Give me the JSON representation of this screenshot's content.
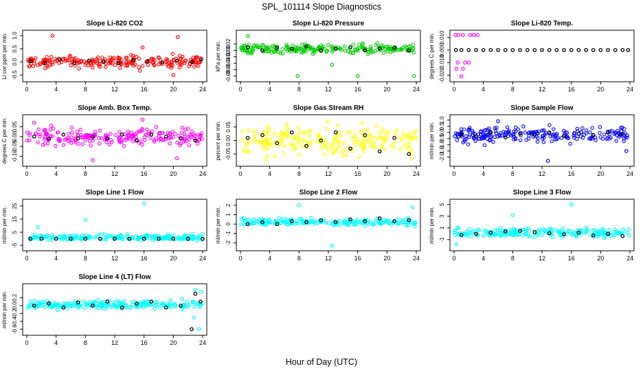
{
  "figure": {
    "title": "SPL_101114  Slope Diagnostics",
    "xlabel": "Hour of Day (UTC)"
  },
  "chart_data": [
    {
      "type": "scatter",
      "title": "Slope Li-820 CO2",
      "ylabel": "Li cor ppm per min.",
      "color": "#ff0000",
      "xlim": [
        0,
        24
      ],
      "ylim": [
        -0.6,
        1.05
      ],
      "xticks": [
        0,
        4,
        8,
        12,
        16,
        20,
        24
      ],
      "yticks": [
        -0.5,
        0.0,
        0.5,
        1.0
      ],
      "ytick_labels": [
        "-0.5",
        "0.0",
        "0.5",
        "1.0"
      ],
      "band": {
        "center": 0.0,
        "spread": 0.22
      },
      "outliers": [
        {
          "x": 3.5,
          "y": 1.0
        },
        {
          "x": 15.8,
          "y": 0.55
        },
        {
          "x": 20.6,
          "y": 0.95
        },
        {
          "x": 20.0,
          "y": -0.5
        }
      ],
      "hourly_means": [
        {
          "x": 0.5,
          "y": 0.02
        },
        {
          "x": 2.5,
          "y": -0.05
        },
        {
          "x": 4.5,
          "y": 0.1
        },
        {
          "x": 6.5,
          "y": -0.05
        },
        {
          "x": 8.5,
          "y": 0.05
        },
        {
          "x": 10.5,
          "y": 0.0
        },
        {
          "x": 12.5,
          "y": -0.05
        },
        {
          "x": 14.5,
          "y": 0.08
        },
        {
          "x": 16.5,
          "y": 0.03
        },
        {
          "x": 18.5,
          "y": -0.02
        },
        {
          "x": 20.5,
          "y": 0.05
        },
        {
          "x": 22.5,
          "y": 0.0
        },
        {
          "x": 23.8,
          "y": 0.1
        }
      ]
    },
    {
      "type": "scatter",
      "title": "Slope Li-820 Pressure",
      "ylabel": "kPa per min.",
      "color": "#00cc00",
      "xlim": [
        0,
        24
      ],
      "ylim": [
        -0.085,
        0.05
      ],
      "xticks": [
        0,
        4,
        8,
        12,
        16,
        20,
        24
      ],
      "yticks": [
        -0.08,
        -0.06,
        -0.04,
        -0.02,
        0.0,
        0.02
      ],
      "ytick_labels": [
        "-0.08",
        "-0.06",
        "-0.04",
        "-0.02",
        "0.00",
        "0.02"
      ],
      "band": {
        "center": 0.005,
        "spread": 0.014
      },
      "outliers": [
        {
          "x": 1.0,
          "y": 0.045
        },
        {
          "x": 7.8,
          "y": -0.08
        },
        {
          "x": 12.5,
          "y": -0.045
        },
        {
          "x": 16.0,
          "y": -0.08
        },
        {
          "x": 23.7,
          "y": -0.08
        }
      ],
      "hourly_means": [
        {
          "x": 1.0,
          "y": 0.01
        },
        {
          "x": 3.0,
          "y": 0.0
        },
        {
          "x": 5.0,
          "y": 0.008
        },
        {
          "x": 7.0,
          "y": 0.005
        },
        {
          "x": 9.0,
          "y": 0.012
        },
        {
          "x": 11.0,
          "y": 0.0
        },
        {
          "x": 13.0,
          "y": 0.005
        },
        {
          "x": 15.0,
          "y": 0.01
        },
        {
          "x": 17.0,
          "y": 0.0
        },
        {
          "x": 19.0,
          "y": 0.005
        },
        {
          "x": 21.0,
          "y": 0.008
        },
        {
          "x": 23.0,
          "y": 0.0
        }
      ]
    },
    {
      "type": "scatter",
      "title": "Slope Li-820 Temp.",
      "ylabel": "degrees C per min.",
      "color": "#ff00ff",
      "xlim": [
        0,
        24
      ],
      "ylim": [
        -0.022,
        0.0125
      ],
      "xticks": [
        0,
        4,
        8,
        12,
        16,
        20,
        24
      ],
      "yticks": [
        -0.02,
        -0.01,
        0.0,
        0.01
      ],
      "ytick_labels": [
        "-0.020",
        "-0.010",
        "0.000",
        "0.010"
      ],
      "band": {
        "center": 0.0,
        "spread": 0.0
      },
      "outliers": [
        {
          "x": 0.2,
          "y": 0.012
        },
        {
          "x": 0.6,
          "y": 0.012
        },
        {
          "x": 1.2,
          "y": 0.012
        },
        {
          "x": 2.2,
          "y": 0.012
        },
        {
          "x": 2.7,
          "y": 0.012
        },
        {
          "x": 3.2,
          "y": 0.012
        },
        {
          "x": 0.5,
          "y": -0.01
        },
        {
          "x": 1.5,
          "y": -0.01
        },
        {
          "x": 2.0,
          "y": -0.01
        },
        {
          "x": 0.3,
          "y": -0.015
        },
        {
          "x": 1.2,
          "y": -0.015
        },
        {
          "x": 1.0,
          "y": -0.021
        }
      ],
      "hourly_means": [
        {
          "x": 0.25,
          "y": 0.0
        },
        {
          "x": 1.0,
          "y": 0.0
        },
        {
          "x": 2.0,
          "y": 0.0
        },
        {
          "x": 3.0,
          "y": 0.0
        },
        {
          "x": 4.0,
          "y": 0.0
        },
        {
          "x": 5.0,
          "y": 0.0
        },
        {
          "x": 6.0,
          "y": 0.0
        },
        {
          "x": 7.0,
          "y": 0.0
        },
        {
          "x": 8.0,
          "y": 0.0
        },
        {
          "x": 9.0,
          "y": 0.0
        },
        {
          "x": 10.0,
          "y": 0.0
        },
        {
          "x": 11.0,
          "y": 0.0
        },
        {
          "x": 12.0,
          "y": 0.0
        },
        {
          "x": 13.0,
          "y": 0.0
        },
        {
          "x": 14.0,
          "y": 0.0
        },
        {
          "x": 15.0,
          "y": 0.0
        },
        {
          "x": 16.0,
          "y": 0.0
        },
        {
          "x": 17.0,
          "y": 0.0
        },
        {
          "x": 18.0,
          "y": 0.0
        },
        {
          "x": 19.0,
          "y": 0.0
        },
        {
          "x": 20.0,
          "y": 0.0
        },
        {
          "x": 21.0,
          "y": 0.0
        },
        {
          "x": 22.0,
          "y": 0.0
        },
        {
          "x": 23.0,
          "y": 0.0
        },
        {
          "x": 23.75,
          "y": 0.0
        }
      ]
    },
    {
      "type": "scatter",
      "title": "Slope Amb. Box Temp.",
      "ylabel": "degrees C per min.",
      "color": "#ff00ff",
      "xlim": [
        0,
        24
      ],
      "ylim": [
        -0.13,
        0.09
      ],
      "xticks": [
        0,
        4,
        8,
        12,
        16,
        20,
        24
      ],
      "yticks": [
        -0.1,
        -0.05,
        0.0,
        0.05
      ],
      "ytick_labels": [
        "-0.10",
        "-0.05",
        "0.00",
        "0.05"
      ],
      "band": {
        "center": 0.0,
        "spread": 0.045
      },
      "outliers": [
        {
          "x": 9.0,
          "y": -0.12
        },
        {
          "x": 15.8,
          "y": 0.085
        },
        {
          "x": 20.5,
          "y": -0.11
        },
        {
          "x": 1.0,
          "y": 0.07
        }
      ],
      "hourly_means": [
        {
          "x": 1.0,
          "y": 0.0
        },
        {
          "x": 3.0,
          "y": -0.01
        },
        {
          "x": 5.0,
          "y": 0.01
        },
        {
          "x": 7.0,
          "y": -0.01
        },
        {
          "x": 9.0,
          "y": 0.0
        },
        {
          "x": 11.0,
          "y": -0.01
        },
        {
          "x": 13.0,
          "y": 0.01
        },
        {
          "x": 15.0,
          "y": -0.02
        },
        {
          "x": 17.0,
          "y": 0.01
        },
        {
          "x": 19.0,
          "y": 0.0
        },
        {
          "x": 21.0,
          "y": -0.01
        },
        {
          "x": 23.0,
          "y": -0.02
        }
      ]
    },
    {
      "type": "scatter",
      "title": "Slope Gas Stream RH",
      "ylabel": "percent per min.",
      "color": "#ffff00",
      "xlim": [
        0,
        24
      ],
      "ylim": [
        -0.08,
        0.08
      ],
      "xticks": [
        0,
        4,
        8,
        12,
        16,
        20,
        24
      ],
      "yticks": [
        -0.05,
        0.0,
        0.05
      ],
      "ytick_labels": [
        "-0.05",
        "0.00",
        "0.05"
      ],
      "band": {
        "center": 0.0,
        "spread": 0.05
      },
      "outliers": [
        {
          "x": 12.0,
          "y": 0.07
        },
        {
          "x": 3.5,
          "y": -0.07
        }
      ],
      "hourly_means": [
        {
          "x": 1.0,
          "y": 0.01
        },
        {
          "x": 3.0,
          "y": 0.02
        },
        {
          "x": 5.0,
          "y": -0.01
        },
        {
          "x": 7.0,
          "y": 0.03
        },
        {
          "x": 9.0,
          "y": -0.02
        },
        {
          "x": 11.0,
          "y": 0.0
        },
        {
          "x": 13.0,
          "y": 0.03
        },
        {
          "x": 15.0,
          "y": -0.03
        },
        {
          "x": 17.0,
          "y": 0.02
        },
        {
          "x": 19.0,
          "y": -0.04
        },
        {
          "x": 21.0,
          "y": 0.01
        },
        {
          "x": 23.0,
          "y": -0.05
        }
      ]
    },
    {
      "type": "scatter",
      "title": "Slope Sample Flow",
      "ylabel": "ml/min per min.",
      "color": "#0000ff",
      "xlim": [
        0,
        24
      ],
      "ylim": [
        -2.4,
        1.1
      ],
      "xticks": [
        0,
        4,
        8,
        12,
        16,
        20,
        24
      ],
      "yticks": [
        -2.0,
        -1.5,
        -1.0,
        -0.5,
        0.0,
        0.5,
        1.0
      ],
      "ytick_labels": [
        "-2.0",
        "-1.5",
        "-1.0",
        "-0.5",
        "0.0",
        "0.5",
        "1.0"
      ],
      "band": {
        "center": -0.2,
        "spread": 0.55
      },
      "outliers": [
        {
          "x": 12.8,
          "y": -2.3
        },
        {
          "x": 6.0,
          "y": 0.9
        },
        {
          "x": 23.5,
          "y": -1.5
        }
      ],
      "hourly_means": [
        {
          "x": 1.0,
          "y": -0.2
        },
        {
          "x": 3.0,
          "y": -0.3
        },
        {
          "x": 5.0,
          "y": 0.0
        },
        {
          "x": 7.0,
          "y": -0.4
        },
        {
          "x": 9.0,
          "y": -0.1
        },
        {
          "x": 11.0,
          "y": -0.2
        },
        {
          "x": 13.0,
          "y": 0.0
        },
        {
          "x": 15.0,
          "y": -0.3
        },
        {
          "x": 17.0,
          "y": -0.1
        },
        {
          "x": 19.0,
          "y": -0.2
        },
        {
          "x": 21.0,
          "y": 0.0
        },
        {
          "x": 23.0,
          "y": -0.1
        }
      ]
    },
    {
      "type": "scatter",
      "title": "Slope Line 1 Flow",
      "ylabel": "ml/min per min.",
      "color": "#00ffff",
      "xlim": [
        0,
        24
      ],
      "ylim": [
        -6,
        27
      ],
      "xticks": [
        0,
        4,
        8,
        12,
        16,
        20,
        24
      ],
      "yticks": [
        -5,
        5,
        15,
        25
      ],
      "ytick_labels": [
        "-5",
        "5",
        "15",
        "25"
      ],
      "band": {
        "center": 1.0,
        "spread": 2.0
      },
      "outliers": [
        {
          "x": 8.0,
          "y": 14.5
        },
        {
          "x": 16.0,
          "y": 27.0
        },
        {
          "x": 1.5,
          "y": 9.0
        }
      ],
      "hourly_means": [
        {
          "x": 0.5,
          "y": 0.0
        },
        {
          "x": 2.0,
          "y": 0.0
        },
        {
          "x": 4.0,
          "y": 0.0
        },
        {
          "x": 6.0,
          "y": 0.0
        },
        {
          "x": 8.0,
          "y": 0.0
        },
        {
          "x": 10.0,
          "y": 0.0
        },
        {
          "x": 12.0,
          "y": 0.0
        },
        {
          "x": 14.0,
          "y": 0.0
        },
        {
          "x": 16.0,
          "y": 0.0
        },
        {
          "x": 18.0,
          "y": 0.0
        },
        {
          "x": 20.0,
          "y": 0.0
        },
        {
          "x": 22.0,
          "y": 0.0
        },
        {
          "x": 24.0,
          "y": 0.0
        }
      ]
    },
    {
      "type": "scatter",
      "title": "Slope Line 2 Flow",
      "ylabel": "ml/min per min.",
      "color": "#00ffff",
      "xlim": [
        0,
        24
      ],
      "ylim": [
        -2.4,
        2.2
      ],
      "xticks": [
        0,
        4,
        8,
        12,
        16,
        20,
        24
      ],
      "yticks": [
        -2,
        -1,
        0,
        1,
        2
      ],
      "ytick_labels": [
        "-2",
        "-1",
        "0",
        "1",
        "2"
      ],
      "band": {
        "center": 0.2,
        "spread": 0.35
      },
      "outliers": [
        {
          "x": 8.0,
          "y": 2.0
        },
        {
          "x": 12.5,
          "y": -2.3
        },
        {
          "x": 23.5,
          "y": 1.8
        }
      ],
      "hourly_means": [
        {
          "x": 1.0,
          "y": 0.0
        },
        {
          "x": 3.0,
          "y": 0.2
        },
        {
          "x": 5.0,
          "y": 0.0
        },
        {
          "x": 7.0,
          "y": 0.3
        },
        {
          "x": 9.0,
          "y": 0.2
        },
        {
          "x": 11.0,
          "y": 0.4
        },
        {
          "x": 13.0,
          "y": 0.2
        },
        {
          "x": 15.0,
          "y": 0.5
        },
        {
          "x": 17.0,
          "y": 0.3
        },
        {
          "x": 19.0,
          "y": 0.6
        },
        {
          "x": 21.0,
          "y": 0.3
        },
        {
          "x": 23.0,
          "y": 0.4
        }
      ]
    },
    {
      "type": "scatter",
      "title": "Slope Line 3 Flow",
      "ylabel": "ml/min per min.",
      "color": "#00ffff",
      "xlim": [
        0,
        24
      ],
      "ylim": [
        -2.2,
        5.2
      ],
      "xticks": [
        0,
        4,
        8,
        12,
        16,
        20,
        24
      ],
      "yticks": [
        -1,
        1,
        3,
        5
      ],
      "ytick_labels": [
        "-1",
        "1",
        "3",
        "5"
      ],
      "band": {
        "center": 0.2,
        "spread": 0.7
      },
      "outliers": [
        {
          "x": 8.0,
          "y": 3.2
        },
        {
          "x": 16.0,
          "y": 5.0
        },
        {
          "x": 0.3,
          "y": -1.8
        }
      ],
      "hourly_means": [
        {
          "x": 1.0,
          "y": -0.2
        },
        {
          "x": 3.0,
          "y": 0.0
        },
        {
          "x": 5.0,
          "y": 0.2
        },
        {
          "x": 7.0,
          "y": 0.4
        },
        {
          "x": 9.0,
          "y": 0.5
        },
        {
          "x": 11.0,
          "y": 0.3
        },
        {
          "x": 13.0,
          "y": 0.1
        },
        {
          "x": 15.0,
          "y": -0.1
        },
        {
          "x": 17.0,
          "y": 0.2
        },
        {
          "x": 19.0,
          "y": -0.3
        },
        {
          "x": 21.0,
          "y": 0.0
        },
        {
          "x": 23.0,
          "y": -0.4
        }
      ]
    },
    {
      "type": "scatter",
      "title": "Slope Line 4 (LT) Flow",
      "ylabel": "ml/min per min.",
      "color": "#00ffff",
      "xlim": [
        0,
        24
      ],
      "ylim": [
        -0.65,
        0.45
      ],
      "xticks": [
        0,
        4,
        8,
        12,
        16,
        20,
        24
      ],
      "yticks": [
        -0.6,
        -0.4,
        -0.2,
        0.0,
        0.2
      ],
      "ytick_labels": [
        "-0.6",
        "-0.4",
        "-0.2",
        "0.0",
        "0.2"
      ],
      "band": {
        "center": 0.02,
        "spread": 0.1
      },
      "outliers": [
        {
          "x": 23.0,
          "y": 0.4
        },
        {
          "x": 22.8,
          "y": -0.3
        },
        {
          "x": 23.5,
          "y": -0.6
        },
        {
          "x": 23.8,
          "y": 0.35
        }
      ],
      "hourly_means": [
        {
          "x": 1.0,
          "y": 0.0
        },
        {
          "x": 3.0,
          "y": 0.05
        },
        {
          "x": 5.0,
          "y": -0.05
        },
        {
          "x": 7.0,
          "y": 0.08
        },
        {
          "x": 9.0,
          "y": 0.0
        },
        {
          "x": 11.0,
          "y": 0.1
        },
        {
          "x": 13.0,
          "y": -0.05
        },
        {
          "x": 15.0,
          "y": 0.05
        },
        {
          "x": 17.0,
          "y": 0.1
        },
        {
          "x": 19.0,
          "y": -0.05
        },
        {
          "x": 21.0,
          "y": 0.0
        },
        {
          "x": 22.5,
          "y": -0.6
        },
        {
          "x": 23.0,
          "y": 0.3
        },
        {
          "x": 23.7,
          "y": 0.1
        }
      ]
    }
  ]
}
